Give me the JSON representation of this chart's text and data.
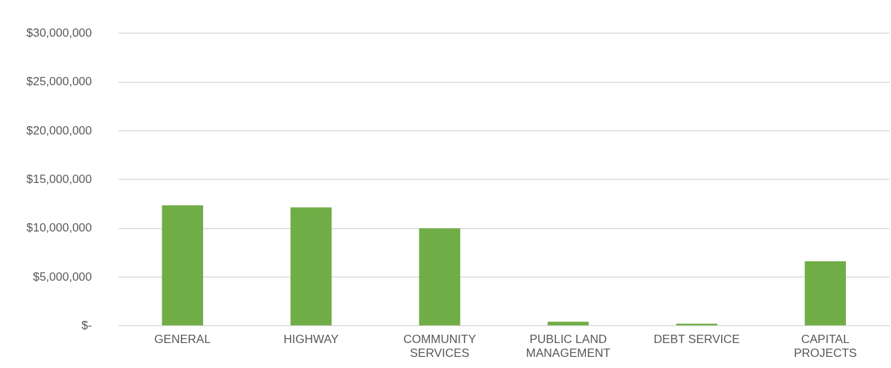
{
  "chart_data": {
    "type": "bar",
    "categories": [
      "GENERAL",
      "HIGHWAY",
      "COMMUNITY SERVICES",
      "PUBLIC LAND MANAGEMENT",
      "DEBT SERVICE",
      "CAPITAL PROJECTS"
    ],
    "values": [
      12370000,
      12150000,
      10000000,
      430000,
      230000,
      6620000
    ],
    "color": "#70ad47",
    "ylim": [
      0,
      30000000
    ],
    "yticks": [
      {
        "value": 0,
        "label": "$-"
      },
      {
        "value": 5000000,
        "label": "$5,000,000"
      },
      {
        "value": 10000000,
        "label": "$10,000,000"
      },
      {
        "value": 15000000,
        "label": "$15,000,000"
      },
      {
        "value": 20000000,
        "label": "$20,000,000"
      },
      {
        "value": 25000000,
        "label": "$25,000,000"
      },
      {
        "value": 30000000,
        "label": "$30,000,000"
      }
    ],
    "grid": "y",
    "legend": false
  }
}
